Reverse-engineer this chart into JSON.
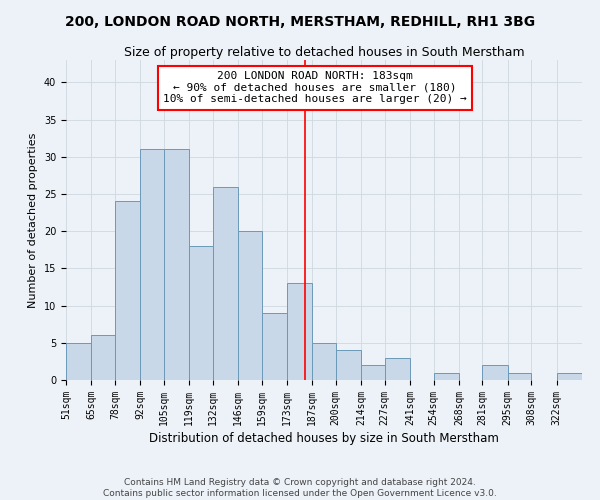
{
  "title": "200, LONDON ROAD NORTH, MERSTHAM, REDHILL, RH1 3BG",
  "subtitle": "Size of property relative to detached houses in South Merstham",
  "xlabel": "Distribution of detached houses by size in South Merstham",
  "ylabel": "Number of detached properties",
  "bin_labels": [
    "51sqm",
    "65sqm",
    "78sqm",
    "92sqm",
    "105sqm",
    "119sqm",
    "132sqm",
    "146sqm",
    "159sqm",
    "173sqm",
    "187sqm",
    "200sqm",
    "214sqm",
    "227sqm",
    "241sqm",
    "254sqm",
    "268sqm",
    "281sqm",
    "295sqm",
    "308sqm",
    "322sqm"
  ],
  "bin_edges": [
    51,
    65,
    78,
    92,
    105,
    119,
    132,
    146,
    159,
    173,
    187,
    200,
    214,
    227,
    241,
    254,
    268,
    281,
    295,
    308,
    322,
    336
  ],
  "counts": [
    5,
    6,
    24,
    31,
    31,
    18,
    26,
    20,
    9,
    13,
    5,
    4,
    2,
    3,
    0,
    1,
    0,
    2,
    1,
    0,
    1
  ],
  "bar_color": "#c8d8e8",
  "bar_edge_color": "#6a9ab8",
  "vline_x": 183,
  "vline_color": "red",
  "annotation_box_text": "200 LONDON ROAD NORTH: 183sqm\n← 90% of detached houses are smaller (180)\n10% of semi-detached houses are larger (20) →",
  "annotation_box_color": "white",
  "annotation_box_edge_color": "red",
  "ylim": [
    0,
    43
  ],
  "yticks": [
    0,
    5,
    10,
    15,
    20,
    25,
    30,
    35,
    40
  ],
  "grid_color": "#d0d8e0",
  "background_color": "#edf2f8",
  "footer_line1": "Contains HM Land Registry data © Crown copyright and database right 2024.",
  "footer_line2": "Contains public sector information licensed under the Open Government Licence v3.0.",
  "title_fontsize": 10,
  "subtitle_fontsize": 9,
  "xlabel_fontsize": 8.5,
  "ylabel_fontsize": 8,
  "tick_fontsize": 7,
  "annotation_fontsize": 8,
  "footer_fontsize": 6.5
}
